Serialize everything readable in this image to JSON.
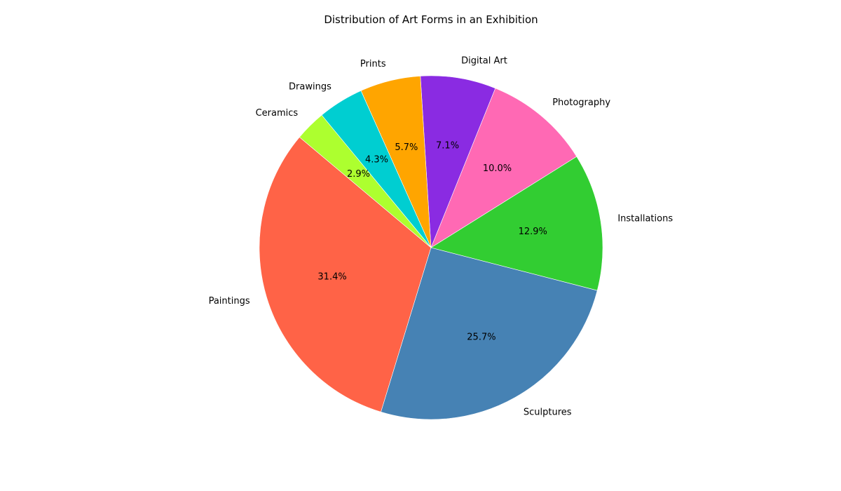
{
  "chart_data": {
    "type": "pie",
    "title": "Distribution of Art Forms in an Exhibition",
    "autopct_format": "%.1f%%",
    "start_angle_deg": 140,
    "direction": "counterclockwise",
    "categories": [
      "Paintings",
      "Sculptures",
      "Installations",
      "Photography",
      "Digital Art",
      "Prints",
      "Drawings",
      "Ceramics"
    ],
    "values": [
      31.4,
      25.7,
      12.9,
      10.0,
      7.1,
      5.7,
      4.3,
      2.9
    ],
    "colors": [
      "#ff6347",
      "#4682b4",
      "#32cd32",
      "#ff69b4",
      "#8a2be2",
      "#ffa500",
      "#00ced1",
      "#adff2f"
    ],
    "legend": "none"
  }
}
